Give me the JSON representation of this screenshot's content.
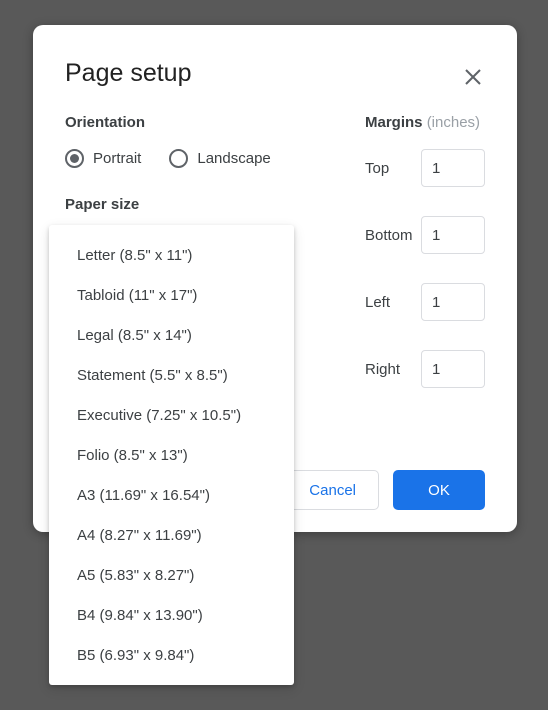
{
  "dialog": {
    "title": "Page setup",
    "orientation": {
      "label": "Orientation",
      "portrait": "Portrait",
      "landscape": "Landscape",
      "selected": "portrait"
    },
    "paperSize": {
      "label": "Paper size",
      "options": [
        "Letter (8.5\" x 11\")",
        "Tabloid (11\" x 17\")",
        "Legal (8.5\" x 14\")",
        "Statement (5.5\" x 8.5\")",
        "Executive (7.25\" x 10.5\")",
        "Folio (8.5\" x 13\")",
        "A3 (11.69\" x 16.54\")",
        "A4 (8.27\" x 11.69\")",
        "A5 (5.83\" x 8.27\")",
        "B4 (9.84\" x 13.90\")",
        "B5 (6.93\" x 9.84\")"
      ]
    },
    "margins": {
      "label": "Margins",
      "unit": "(inches)",
      "rows": [
        {
          "label": "Top",
          "value": "1"
        },
        {
          "label": "Bottom",
          "value": "1"
        },
        {
          "label": "Left",
          "value": "1"
        },
        {
          "label": "Right",
          "value": "1"
        }
      ]
    },
    "buttons": {
      "cancel": "Cancel",
      "ok": "OK"
    }
  },
  "colors": {
    "background": "#595959",
    "dialogBg": "#ffffff",
    "primary": "#1a73e8",
    "text": "#3c4043",
    "muted": "#9aa0a6",
    "border": "#dadce0",
    "iconGray": "#5f6368"
  }
}
